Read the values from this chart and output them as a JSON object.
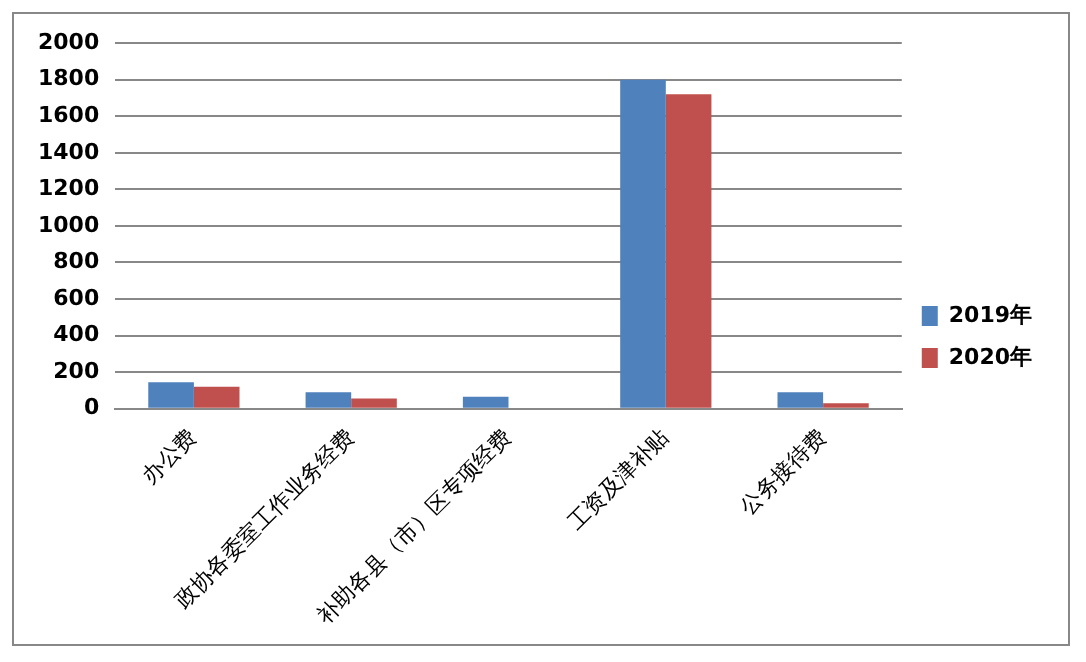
{
  "chart_data": {
    "type": "bar",
    "categories": [
      "办公费",
      "政协各委室工作业务经费",
      "补助各县（市）区专项经费",
      "工资及津补贴",
      "公务接待费"
    ],
    "series": [
      {
        "name": "2019年",
        "color": "#4f81bd",
        "values": [
          145,
          90,
          65,
          1800,
          90
        ]
      },
      {
        "name": "2020年",
        "color": "#c0504d",
        "values": [
          120,
          55,
          null,
          1720,
          30
        ]
      }
    ],
    "ylim": [
      0,
      2000
    ],
    "yticks": [
      0,
      200,
      400,
      600,
      800,
      1000,
      1200,
      1400,
      1600,
      1800,
      2000
    ],
    "grid": "y",
    "legend": "right"
  }
}
